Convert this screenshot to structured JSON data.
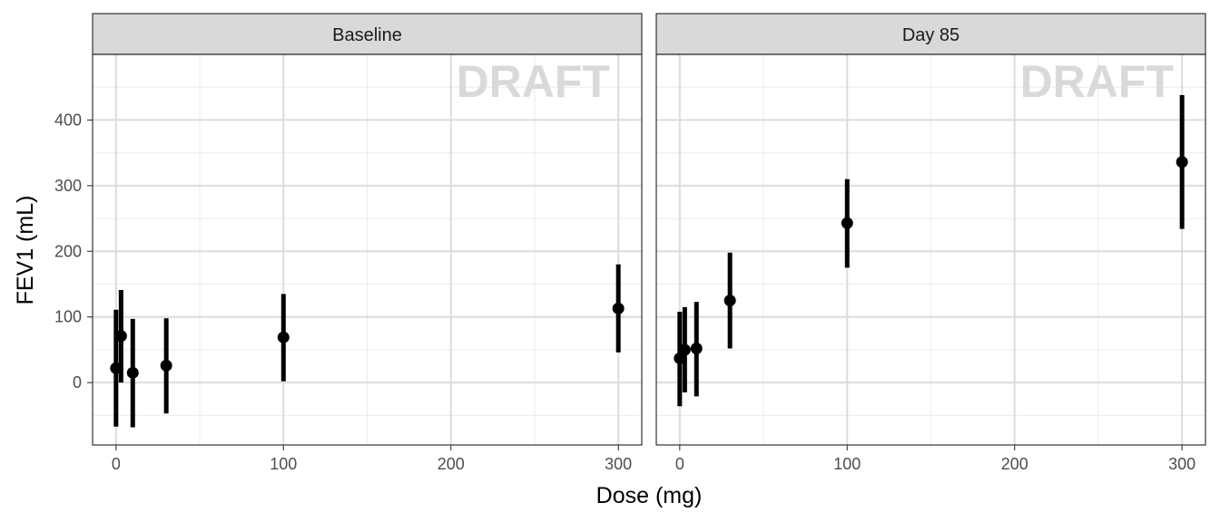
{
  "chart_data": {
    "type": "scatter",
    "xlabel": "Dose (mg)",
    "ylabel": "FEV1 (mL)",
    "xlim": [
      -14,
      314
    ],
    "ylim": [
      -95,
      500
    ],
    "x_ticks": [
      0,
      100,
      200,
      300
    ],
    "x_tick_labels": [
      "0",
      "100",
      "200",
      "300"
    ],
    "y_ticks": [
      0,
      100,
      200,
      300,
      400
    ],
    "y_tick_labels": [
      "0",
      "100",
      "200",
      "300",
      "400"
    ],
    "grid": true,
    "watermark": "DRAFT",
    "point_color": "#000000",
    "panels": [
      {
        "label": "Baseline",
        "points": [
          {
            "x": 0,
            "y": 22,
            "lower": -67,
            "upper": 111
          },
          {
            "x": 3,
            "y": 71,
            "lower": 0,
            "upper": 141
          },
          {
            "x": 10,
            "y": 15,
            "lower": -68,
            "upper": 97
          },
          {
            "x": 30,
            "y": 26,
            "lower": -47,
            "upper": 98
          },
          {
            "x": 100,
            "y": 69,
            "lower": 2,
            "upper": 135
          },
          {
            "x": 300,
            "y": 113,
            "lower": 46,
            "upper": 180
          }
        ]
      },
      {
        "label": "Day 85",
        "points": [
          {
            "x": 0,
            "y": 37,
            "lower": -36,
            "upper": 108
          },
          {
            "x": 3,
            "y": 50,
            "lower": -15,
            "upper": 115
          },
          {
            "x": 10,
            "y": 52,
            "lower": -21,
            "upper": 123
          },
          {
            "x": 30,
            "y": 125,
            "lower": 52,
            "upper": 198
          },
          {
            "x": 100,
            "y": 243,
            "lower": 175,
            "upper": 310
          },
          {
            "x": 300,
            "y": 336,
            "lower": 234,
            "upper": 438
          }
        ]
      }
    ]
  }
}
